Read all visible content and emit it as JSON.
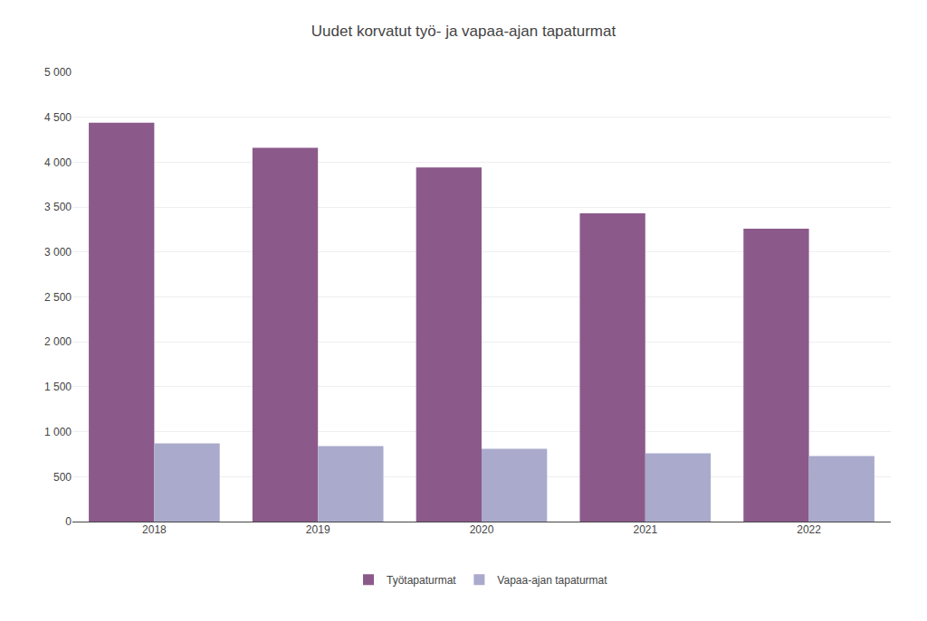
{
  "chart_data": {
    "type": "bar",
    "title": "Uudet korvatut työ- ja vapaa-ajan tapaturmat",
    "categories": [
      "2018",
      "2019",
      "2020",
      "2021",
      "2022"
    ],
    "series": [
      {
        "name": "Työtapaturmat",
        "color": "#8B5A8B",
        "values": [
          4440,
          4160,
          3940,
          3430,
          3260
        ]
      },
      {
        "name": "Vapaa-ajan tapaturmat",
        "color": "#aaaacc",
        "values": [
          870,
          840,
          810,
          760,
          730
        ]
      }
    ],
    "ylim": [
      0,
      5000
    ],
    "yticks": [
      0,
      500,
      {
        "value": 1000,
        "label": "1 000"
      },
      {
        "value": 1500,
        "label": "1 500"
      },
      {
        "value": 2000,
        "label": "2 000"
      },
      {
        "value": 2500,
        "label": "2 500"
      },
      {
        "value": 3000,
        "label": "3 000"
      },
      {
        "value": 3500,
        "label": "3 500"
      },
      {
        "value": 4000,
        "label": "4 000"
      },
      {
        "value": 4500,
        "label": "4 500"
      },
      {
        "value": 5000,
        "label": "5 000"
      }
    ],
    "grid": true,
    "legend": "bottom"
  }
}
